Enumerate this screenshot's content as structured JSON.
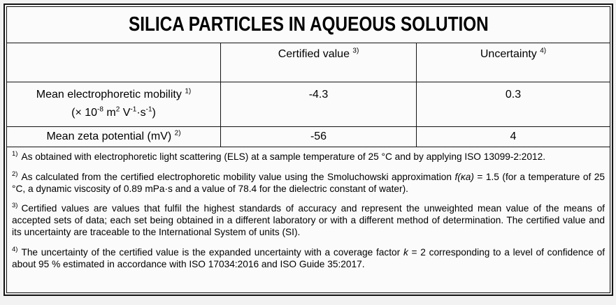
{
  "title": "SILICA PARTICLES IN AQUEOUS SOLUTION",
  "table": {
    "header": {
      "property_column": "",
      "certified_value": "Certified value ^{3)}",
      "uncertainty": "Uncertainty ^{4)}"
    },
    "rows": [
      {
        "label": "Mean electrophoretic mobility ^{1)}",
        "unit": "(× 10^{-8} m^{2} V^{-1}·s^{-1})",
        "certified_value": "-4.3",
        "uncertainty": "0.3"
      },
      {
        "label": "Mean zeta potential (mV) ^{2)}",
        "unit": "",
        "certified_value": "-56",
        "uncertainty": "4"
      }
    ]
  },
  "footnotes": [
    {
      "marker": "1)",
      "text": "As obtained with electrophoretic light scattering (ELS) at a sample temperature of 25 °C and by applying ISO 13099-2:2012."
    },
    {
      "marker": "2)",
      "text": "As calculated from the certified electrophoretic mobility value using the Smoluchowski approximation *f(κa)* = 1.5 (for a temperature of 25 °C, a dynamic viscosity of 0.89 mPa·s and a value of 78.4 for the dielectric constant of water)."
    },
    {
      "marker": "3)",
      "text": "Certified values are values that fulfil the highest standards of accuracy and represent the unweighted mean value of the means of accepted sets of data; each set being obtained in a different laboratory or with a different method of determination. The certified value and its uncertainty are traceable to the International System of units (SI)."
    },
    {
      "marker": "4)",
      "text": "The uncertainty of the certified value is the expanded uncertainty with a coverage factor *k* = 2 corresponding to a level of confidence of about 95 % estimated in accordance with ISO 17034:2016 and ISO Guide 35:2017."
    }
  ],
  "colors": {
    "background": "#f2f2f2",
    "paper": "#fbfbfb",
    "border": "#131313",
    "text": "#010101"
  }
}
